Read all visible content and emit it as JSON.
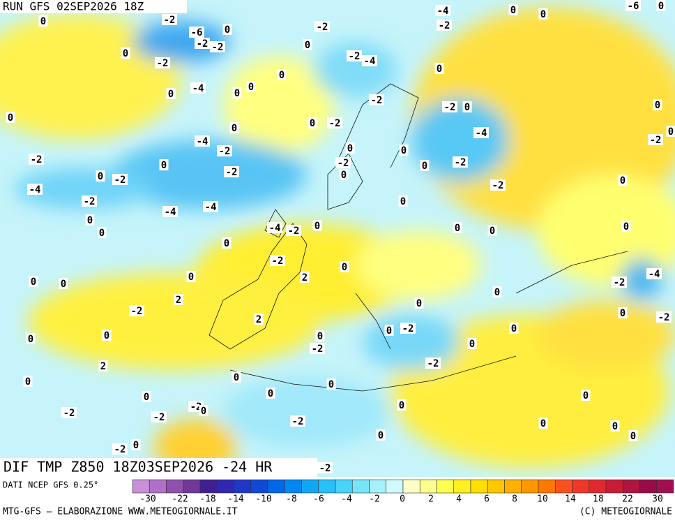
{
  "header": {
    "run": "RUN GFS 02SEP2026 18Z"
  },
  "map": {
    "title": "DIF TMP Z850 18Z03SEP2026 -24 HR",
    "contour_labels": [
      0,
      -2,
      -6,
      0,
      -2,
      -2,
      0,
      -2,
      -2,
      0,
      -2,
      -4,
      0,
      0,
      0,
      -4,
      0,
      0,
      0,
      0,
      -2,
      -2,
      -2,
      0,
      -4,
      -4,
      -2,
      0,
      -2,
      0,
      0,
      -2,
      0,
      -2,
      0,
      -2,
      -2,
      -4,
      0,
      -2,
      -2,
      -4,
      -4,
      0,
      0,
      0,
      0,
      -4,
      -2,
      0,
      0,
      0,
      0,
      0,
      -2,
      0,
      0,
      0,
      0,
      2,
      -2,
      -4,
      2,
      0,
      -2,
      0,
      2,
      0,
      -2,
      0,
      0,
      -2,
      0,
      0,
      0,
      -2,
      0,
      2,
      -2,
      0,
      0,
      0,
      0,
      0,
      -2,
      0,
      0,
      0,
      -2,
      -2,
      -2,
      0,
      0,
      0,
      0,
      -2,
      0,
      -2,
      -4,
      0,
      0,
      -2,
      0,
      0,
      -2,
      -6,
      0,
      0
    ]
  },
  "colorbar": {
    "source": "DATI NCEP GFS 0.25°",
    "ticks": [
      -30,
      -22,
      -18,
      -14,
      -10,
      -8,
      -6,
      -4,
      -2,
      0,
      2,
      4,
      6,
      8,
      10,
      14,
      18,
      22,
      30
    ],
    "colors": [
      "#c890d8",
      "#b070c8",
      "#9050b0",
      "#703898",
      "#402090",
      "#3028b0",
      "#2038c8",
      "#1048d8",
      "#0068e8",
      "#0088f0",
      "#10a8f4",
      "#28c0f8",
      "#48d4f8",
      "#78e4fa",
      "#a8f0fc",
      "#d0fafc",
      "#ffffc8",
      "#ffff90",
      "#ffff50",
      "#fff020",
      "#ffe000",
      "#ffc800",
      "#ffb000",
      "#ff9800",
      "#ff7800",
      "#ff5020",
      "#f03828",
      "#e02830",
      "#c81c38",
      "#b01440",
      "#980c48",
      "#a01050"
    ]
  },
  "footer": {
    "left": "MTG-GFS — ELABORAZIONE WWW.METEOGIORNALE.IT",
    "right": "(C) METEOGIORNALE"
  }
}
